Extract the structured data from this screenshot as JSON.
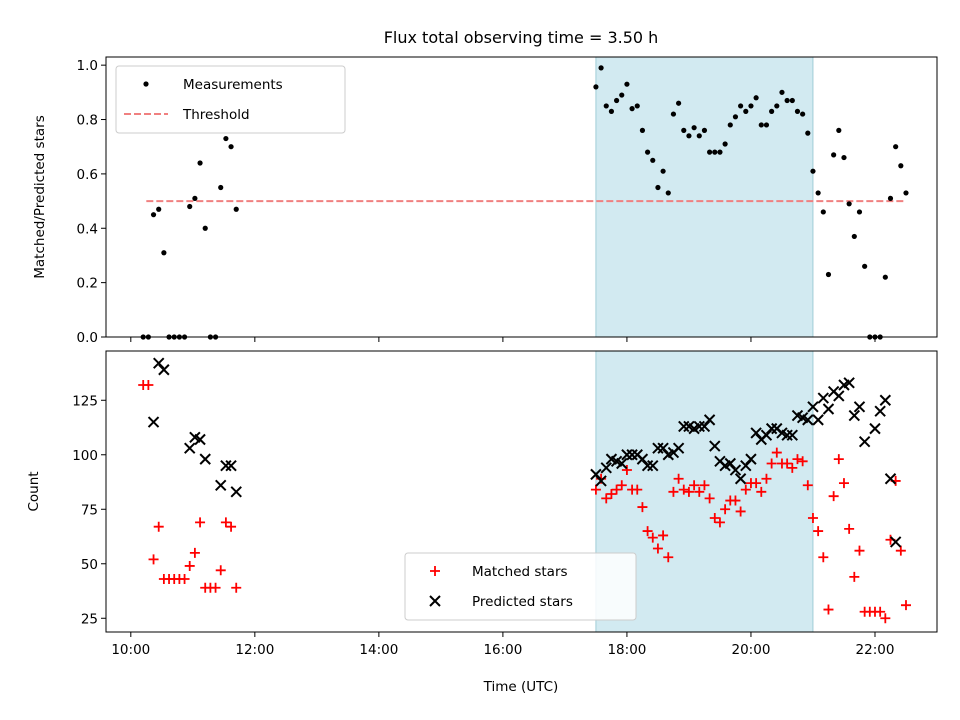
{
  "title": "Flux total observing time = 3.50 h",
  "xlabel": "Time (UTC)",
  "x_tick_labels": [
    "10:00",
    "12:00",
    "14:00",
    "16:00",
    "18:00",
    "20:00",
    "22:00"
  ],
  "colors": {
    "highlight": "#add8e6",
    "measurements": "#000000",
    "threshold": "#f08080",
    "matched": "#ff0000",
    "predicted": "#000000"
  },
  "chart_data": [
    {
      "type": "scatter",
      "ylabel": "Matched/Predicted stars",
      "xlim": [
        "09:36",
        "23:00"
      ],
      "ylim": [
        0,
        1.03
      ],
      "y_ticks": [
        "0.0",
        "0.2",
        "0.4",
        "0.6",
        "0.8",
        "1.0"
      ],
      "legend": {
        "location": "upper-left",
        "entries": [
          "Measurements",
          "Threshold"
        ]
      },
      "highlight_span": [
        "17:30",
        "21:00"
      ],
      "threshold": {
        "name": "Threshold",
        "value": 0.5,
        "x_range": [
          "10:15",
          "22:30"
        ]
      },
      "series": [
        {
          "name": "Measurements",
          "points": [
            [
              "10:12",
              0
            ],
            [
              "10:17",
              0
            ],
            [
              "10:22",
              0.45
            ],
            [
              "10:27",
              0.47
            ],
            [
              "10:32",
              0.31
            ],
            [
              "10:37",
              0
            ],
            [
              "10:42",
              0
            ],
            [
              "10:47",
              0
            ],
            [
              "10:52",
              0
            ],
            [
              "10:57",
              0.48
            ],
            [
              "11:02",
              0.51
            ],
            [
              "11:07",
              0.64
            ],
            [
              "11:12",
              0.4
            ],
            [
              "11:17",
              0
            ],
            [
              "11:22",
              0
            ],
            [
              "11:27",
              0.55
            ],
            [
              "11:32",
              0.73
            ],
            [
              "11:37",
              0.7
            ],
            [
              "11:42",
              0.47
            ],
            [
              "17:30",
              0.92
            ],
            [
              "17:35",
              0.99
            ],
            [
              "17:40",
              0.85
            ],
            [
              "17:45",
              0.83
            ],
            [
              "17:50",
              0.87
            ],
            [
              "17:55",
              0.89
            ],
            [
              "18:00",
              0.93
            ],
            [
              "18:05",
              0.84
            ],
            [
              "18:10",
              0.85
            ],
            [
              "18:15",
              0.76
            ],
            [
              "18:20",
              0.68
            ],
            [
              "18:25",
              0.65
            ],
            [
              "18:30",
              0.55
            ],
            [
              "18:35",
              0.61
            ],
            [
              "18:40",
              0.53
            ],
            [
              "18:45",
              0.82
            ],
            [
              "18:50",
              0.86
            ],
            [
              "18:55",
              0.76
            ],
            [
              "19:00",
              0.74
            ],
            [
              "19:05",
              0.77
            ],
            [
              "19:10",
              0.74
            ],
            [
              "19:15",
              0.76
            ],
            [
              "19:20",
              0.68
            ],
            [
              "19:25",
              0.68
            ],
            [
              "19:30",
              0.68
            ],
            [
              "19:35",
              0.71
            ],
            [
              "19:40",
              0.78
            ],
            [
              "19:45",
              0.81
            ],
            [
              "19:50",
              0.85
            ],
            [
              "19:55",
              0.83
            ],
            [
              "20:00",
              0.85
            ],
            [
              "20:05",
              0.88
            ],
            [
              "20:10",
              0.78
            ],
            [
              "20:15",
              0.78
            ],
            [
              "20:20",
              0.83
            ],
            [
              "20:25",
              0.85
            ],
            [
              "20:30",
              0.9
            ],
            [
              "20:35",
              0.87
            ],
            [
              "20:40",
              0.87
            ],
            [
              "20:45",
              0.83
            ],
            [
              "20:50",
              0.82
            ],
            [
              "20:55",
              0.75
            ],
            [
              "21:00",
              0.61
            ],
            [
              "21:05",
              0.53
            ],
            [
              "21:10",
              0.46
            ],
            [
              "21:15",
              0.23
            ],
            [
              "21:20",
              0.67
            ],
            [
              "21:25",
              0.76
            ],
            [
              "21:30",
              0.66
            ],
            [
              "21:35",
              0.49
            ],
            [
              "21:40",
              0.37
            ],
            [
              "21:45",
              0.46
            ],
            [
              "21:50",
              0.26
            ],
            [
              "21:55",
              0
            ],
            [
              "22:00",
              0
            ],
            [
              "22:05",
              0
            ],
            [
              "22:10",
              0.22
            ],
            [
              "22:15",
              0.51
            ],
            [
              "22:20",
              0.7
            ],
            [
              "22:25",
              0.63
            ],
            [
              "22:30",
              0.53
            ]
          ]
        }
      ]
    },
    {
      "type": "scatter",
      "ylabel": "Count",
      "xlim": [
        "09:36",
        "23:00"
      ],
      "ylim": [
        18.7,
        147.6
      ],
      "y_ticks": [
        "25",
        "50",
        "75",
        "100",
        "125"
      ],
      "legend": {
        "location": "lower-center",
        "entries": [
          "Matched stars",
          "Predicted stars"
        ]
      },
      "highlight_span": [
        "17:30",
        "21:00"
      ],
      "series": [
        {
          "name": "Matched stars",
          "marker": "plus",
          "points": [
            [
              "10:12",
              132
            ],
            [
              "10:17",
              132
            ],
            [
              "10:22",
              52
            ],
            [
              "10:27",
              67
            ],
            [
              "10:32",
              43
            ],
            [
              "10:37",
              43
            ],
            [
              "10:42",
              43
            ],
            [
              "10:47",
              43
            ],
            [
              "10:52",
              43
            ],
            [
              "10:57",
              49
            ],
            [
              "11:02",
              55
            ],
            [
              "11:07",
              69
            ],
            [
              "11:12",
              39
            ],
            [
              "11:17",
              39
            ],
            [
              "11:22",
              39
            ],
            [
              "11:27",
              47
            ],
            [
              "11:32",
              69
            ],
            [
              "11:37",
              67
            ],
            [
              "11:42",
              39
            ],
            [
              "17:30",
              84
            ],
            [
              "17:35",
              89
            ],
            [
              "17:40",
              80
            ],
            [
              "17:45",
              82
            ],
            [
              "17:50",
              84
            ],
            [
              "17:55",
              86
            ],
            [
              "18:00",
              93
            ],
            [
              "18:05",
              84
            ],
            [
              "18:10",
              84
            ],
            [
              "18:15",
              76
            ],
            [
              "18:20",
              65
            ],
            [
              "18:25",
              62
            ],
            [
              "18:30",
              57
            ],
            [
              "18:35",
              63
            ],
            [
              "18:40",
              53
            ],
            [
              "18:45",
              83
            ],
            [
              "18:50",
              89
            ],
            [
              "18:55",
              84
            ],
            [
              "19:00",
              83
            ],
            [
              "19:05",
              86
            ],
            [
              "19:10",
              83
            ],
            [
              "19:15",
              86
            ],
            [
              "19:20",
              80
            ],
            [
              "19:25",
              71
            ],
            [
              "19:30",
              69
            ],
            [
              "19:35",
              75
            ],
            [
              "19:40",
              79
            ],
            [
              "19:45",
              79
            ],
            [
              "19:50",
              74
            ],
            [
              "19:55",
              84
            ],
            [
              "20:00",
              87
            ],
            [
              "20:05",
              87
            ],
            [
              "20:10",
              83
            ],
            [
              "20:15",
              89
            ],
            [
              "20:20",
              96
            ],
            [
              "20:25",
              101
            ],
            [
              "20:30",
              96
            ],
            [
              "20:35",
              96
            ],
            [
              "20:40",
              94
            ],
            [
              "20:45",
              98
            ],
            [
              "20:50",
              97
            ],
            [
              "20:55",
              86
            ],
            [
              "21:00",
              71
            ],
            [
              "21:05",
              65
            ],
            [
              "21:10",
              53
            ],
            [
              "21:15",
              29
            ],
            [
              "21:20",
              81
            ],
            [
              "21:25",
              98
            ],
            [
              "21:30",
              87
            ],
            [
              "21:35",
              66
            ],
            [
              "21:40",
              44
            ],
            [
              "21:45",
              56
            ],
            [
              "21:50",
              28
            ],
            [
              "21:55",
              28
            ],
            [
              "22:00",
              28
            ],
            [
              "22:05",
              28
            ],
            [
              "22:10",
              25
            ],
            [
              "22:15",
              61
            ],
            [
              "22:20",
              88
            ],
            [
              "22:25",
              56
            ],
            [
              "22:30",
              31
            ]
          ]
        },
        {
          "name": "Predicted stars",
          "marker": "x",
          "points": [
            [
              "10:22",
              115
            ],
            [
              "10:27",
              142
            ],
            [
              "10:32",
              139
            ],
            [
              "10:57",
              103
            ],
            [
              "11:02",
              108
            ],
            [
              "11:07",
              107
            ],
            [
              "11:12",
              98
            ],
            [
              "11:27",
              86
            ],
            [
              "11:32",
              95
            ],
            [
              "11:37",
              95
            ],
            [
              "11:42",
              83
            ],
            [
              "17:30",
              91
            ],
            [
              "17:35",
              88
            ],
            [
              "17:40",
              94
            ],
            [
              "17:45",
              98
            ],
            [
              "17:50",
              97
            ],
            [
              "17:55",
              96
            ],
            [
              "18:00",
              100
            ],
            [
              "18:05",
              100
            ],
            [
              "18:10",
              100
            ],
            [
              "18:15",
              98
            ],
            [
              "18:20",
              95
            ],
            [
              "18:25",
              95
            ],
            [
              "18:30",
              103
            ],
            [
              "18:35",
              103
            ],
            [
              "18:40",
              100
            ],
            [
              "18:45",
              101
            ],
            [
              "18:50",
              103
            ],
            [
              "18:55",
              113
            ],
            [
              "19:00",
              113
            ],
            [
              "19:05",
              112
            ],
            [
              "19:10",
              113
            ],
            [
              "19:15",
              113
            ],
            [
              "19:20",
              116
            ],
            [
              "19:25",
              104
            ],
            [
              "19:30",
              97
            ],
            [
              "19:35",
              95
            ],
            [
              "19:40",
              96
            ],
            [
              "19:45",
              93
            ],
            [
              "19:50",
              89
            ],
            [
              "19:55",
              95
            ],
            [
              "20:00",
              98
            ],
            [
              "20:05",
              110
            ],
            [
              "20:10",
              107
            ],
            [
              "20:15",
              109
            ],
            [
              "20:20",
              112
            ],
            [
              "20:25",
              112
            ],
            [
              "20:30",
              110
            ],
            [
              "20:35",
              109
            ],
            [
              "20:40",
              109
            ],
            [
              "20:45",
              118
            ],
            [
              "20:50",
              117
            ],
            [
              "20:55",
              116
            ],
            [
              "21:00",
              122
            ],
            [
              "21:05",
              116
            ],
            [
              "21:10",
              126
            ],
            [
              "21:15",
              121
            ],
            [
              "21:20",
              129
            ],
            [
              "21:25",
              127
            ],
            [
              "21:30",
              132
            ],
            [
              "21:35",
              133
            ],
            [
              "21:40",
              118
            ],
            [
              "21:45",
              122
            ],
            [
              "21:50",
              106
            ],
            [
              "22:00",
              112
            ],
            [
              "22:05",
              120
            ],
            [
              "22:10",
              125
            ],
            [
              "22:15",
              89
            ],
            [
              "22:20",
              60
            ]
          ]
        }
      ]
    }
  ]
}
